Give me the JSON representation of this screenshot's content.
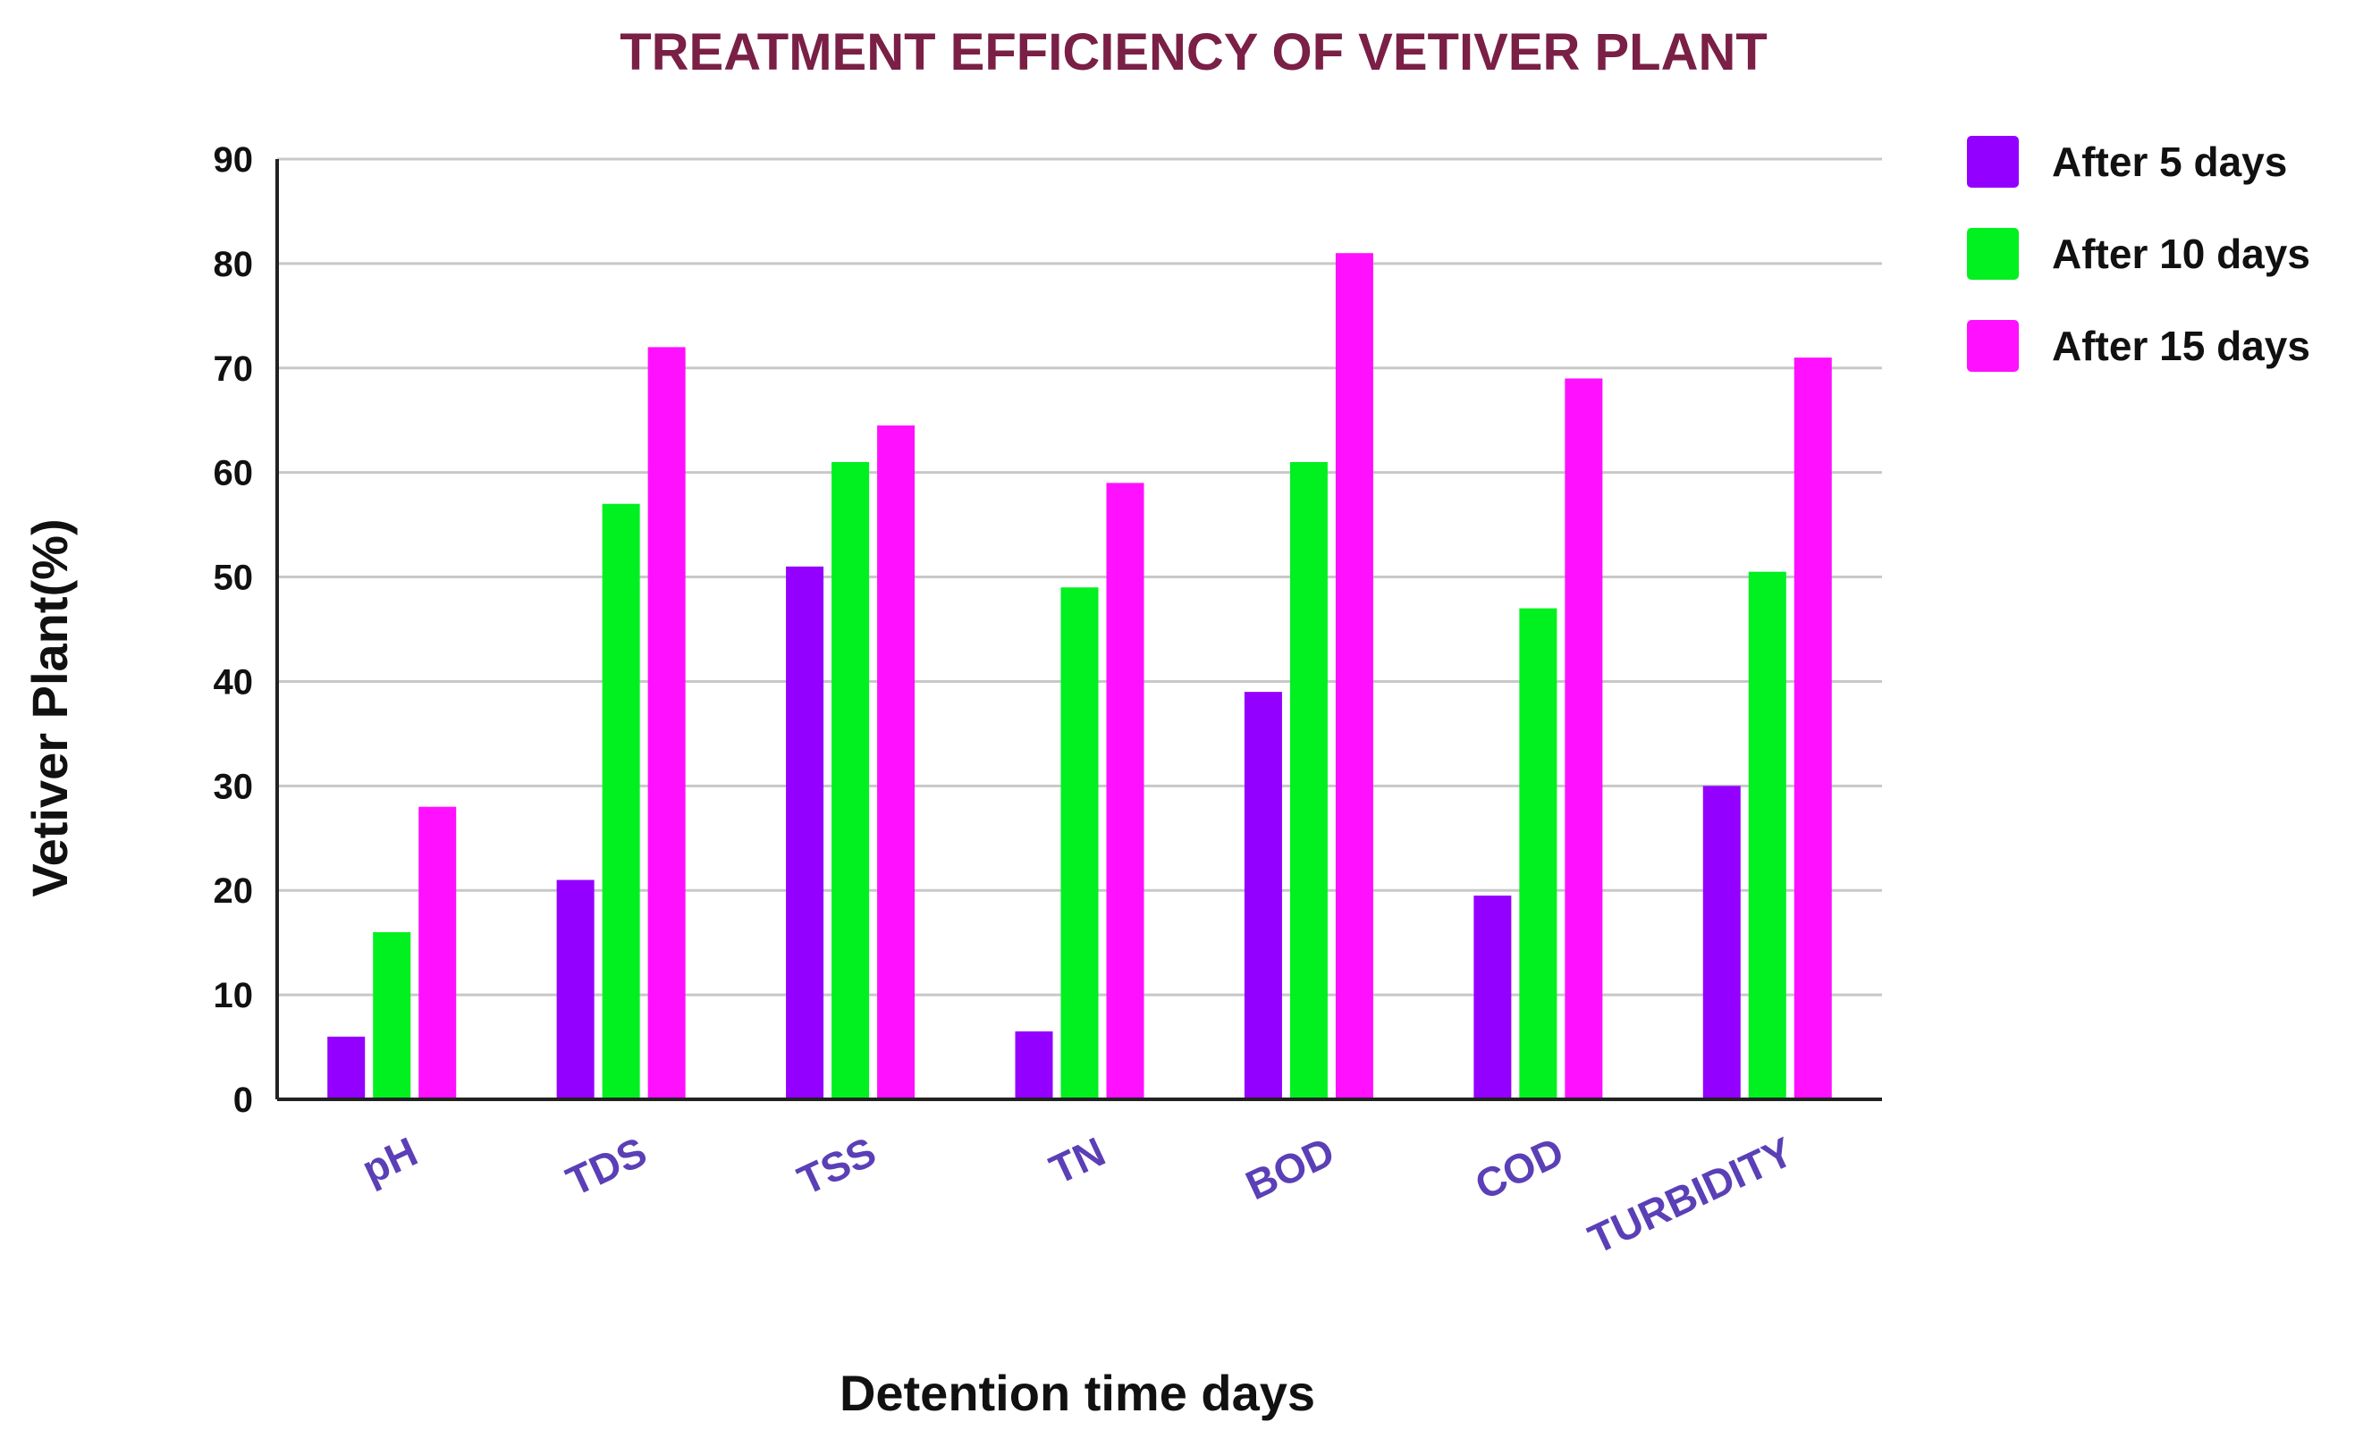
{
  "chart_data": {
    "type": "bar",
    "title": "TREATMENT EFFICIENCY OF VETIVER PLANT",
    "xlabel": "Detention time days",
    "ylabel": "Vetiver Plant(%)",
    "ylim": [
      0,
      90
    ],
    "yticks": [
      0,
      10,
      20,
      30,
      40,
      50,
      60,
      70,
      80,
      90
    ],
    "grid": true,
    "legend_position": "top-right",
    "categories": [
      "pH",
      "TDS",
      "TSS",
      "TN",
      "BOD",
      "COD",
      "TURBIDITY"
    ],
    "series": [
      {
        "name": "After 5 days",
        "color": "#9400ff",
        "values": [
          6,
          21,
          51,
          6.5,
          39,
          19.5,
          30
        ]
      },
      {
        "name": "After 10 days",
        "color": "#00f020",
        "values": [
          16,
          57,
          61,
          49,
          61,
          47,
          50.5
        ]
      },
      {
        "name": "After 15 days",
        "color": "#ff10ff",
        "values": [
          28,
          72,
          64.5,
          59,
          81,
          69,
          71
        ]
      }
    ]
  }
}
